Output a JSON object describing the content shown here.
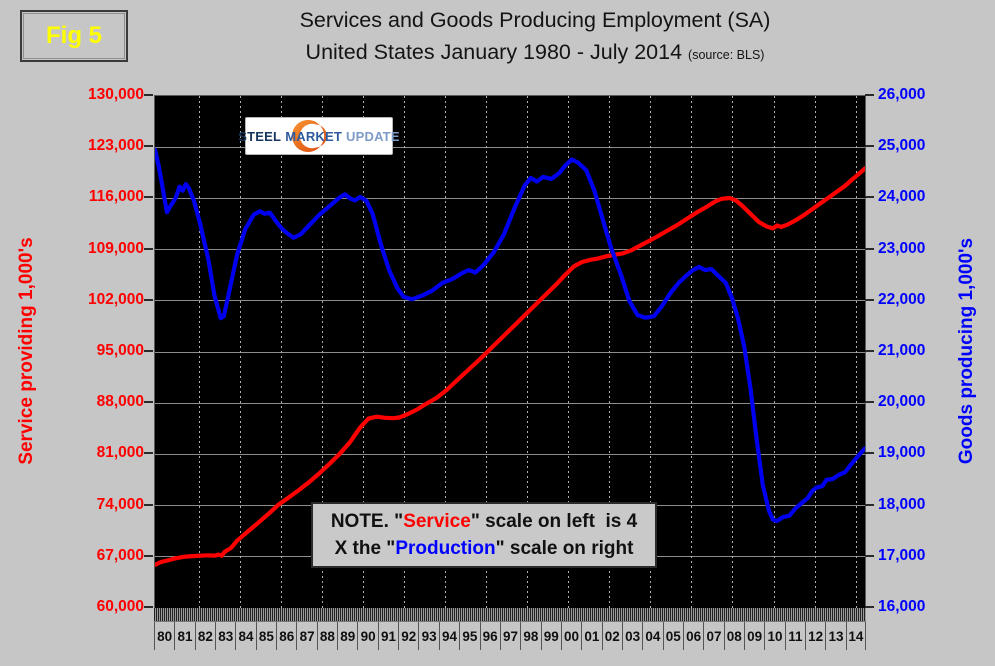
{
  "fig_label": "Fig 5",
  "title": {
    "line1": "Services and Goods Producing Employment (SA)",
    "line2": "United States January 1980 - July 2014",
    "source": "(source: BLS)"
  },
  "logo": {
    "word1": "STEEL",
    "word2": "MARKET",
    "word3": "UPDATE"
  },
  "note": {
    "parts": [
      {
        "text": "NOTE. \"",
        "color": "k"
      },
      {
        "text": "Service",
        "color": "r"
      },
      {
        "text": "\" scale on left  is 4\nX the \"",
        "color": "k"
      },
      {
        "text": "Production",
        "color": "b"
      },
      {
        "text": "\" scale on right",
        "color": "k"
      }
    ]
  },
  "axes": {
    "left_title": "Service providing 1,000's",
    "right_title": "Goods producing 1,000's",
    "left_ticks": [
      "130,000",
      "123,000",
      "116,000",
      "109,000",
      "102,000",
      "95,000",
      "88,000",
      "81,000",
      "74,000",
      "67,000",
      "60,000"
    ],
    "right_ticks": [
      "26,000",
      "25,000",
      "24,000",
      "23,000",
      "22,000",
      "21,000",
      "20,000",
      "19,000",
      "18,000",
      "17,000",
      "16,000"
    ],
    "year_labels": [
      "80",
      "81",
      "82",
      "83",
      "84",
      "85",
      "86",
      "87",
      "88",
      "89",
      "90",
      "91",
      "92",
      "93",
      "94",
      "95",
      "96",
      "97",
      "98",
      "99",
      "00",
      "01",
      "02",
      "03",
      "04",
      "05",
      "06",
      "07",
      "08",
      "09",
      "10",
      "11",
      "12",
      "13",
      "14"
    ]
  },
  "colors": {
    "service_line": "#ff0000",
    "goods_line": "#0000ee",
    "background": "#c6c6c6",
    "plot_bg": "#000000",
    "fig_label_color": "#ffff00"
  },
  "chart_data": {
    "type": "line",
    "title": "Services and Goods Producing Employment (SA), United States January 1980 - July 2014",
    "x_range": [
      1980.0,
      2014.58
    ],
    "ylim_left": [
      60000,
      130000
    ],
    "ylim_right": [
      16000,
      26000
    ],
    "grid": "on",
    "vgrid_years": [
      1982.15,
      1984.15,
      1986.15,
      1988.15,
      1990.15,
      1992.15,
      1994.15,
      1996.15,
      1998.15,
      2000.15,
      2002.15,
      2004.15,
      2006.15,
      2008.15,
      2010.15,
      2012.15,
      2014.15
    ],
    "series": [
      {
        "name": "Service providing 1,000's",
        "axis": "left",
        "color": "#ff0000",
        "points": [
          [
            1980.0,
            65900
          ],
          [
            1980.3,
            66300
          ],
          [
            1980.6,
            66500
          ],
          [
            1981.0,
            66800
          ],
          [
            1981.4,
            67000
          ],
          [
            1981.8,
            67100
          ],
          [
            1982.2,
            67150
          ],
          [
            1982.6,
            67200
          ],
          [
            1982.9,
            67150
          ],
          [
            1983.1,
            67300
          ],
          [
            1983.25,
            67150
          ],
          [
            1983.4,
            67700
          ],
          [
            1983.7,
            68200
          ],
          [
            1984.0,
            69200
          ],
          [
            1984.5,
            70400
          ],
          [
            1985.0,
            71600
          ],
          [
            1985.5,
            72800
          ],
          [
            1986.0,
            74100
          ],
          [
            1986.5,
            75100
          ],
          [
            1987.0,
            76100
          ],
          [
            1987.5,
            77200
          ],
          [
            1988.0,
            78400
          ],
          [
            1988.5,
            79700
          ],
          [
            1989.0,
            81100
          ],
          [
            1989.5,
            82700
          ],
          [
            1990.0,
            84700
          ],
          [
            1990.4,
            85900
          ],
          [
            1990.8,
            86150
          ],
          [
            1991.2,
            86000
          ],
          [
            1991.6,
            85950
          ],
          [
            1991.9,
            86050
          ],
          [
            1992.3,
            86500
          ],
          [
            1992.8,
            87200
          ],
          [
            1993.2,
            87900
          ],
          [
            1993.7,
            88700
          ],
          [
            1994.2,
            89800
          ],
          [
            1994.7,
            91100
          ],
          [
            1995.2,
            92400
          ],
          [
            1995.7,
            93700
          ],
          [
            1996.0,
            94500
          ],
          [
            1996.4,
            95600
          ],
          [
            1996.8,
            96700
          ],
          [
            1997.2,
            97800
          ],
          [
            1997.6,
            98900
          ],
          [
            1998.0,
            100000
          ],
          [
            1998.4,
            101100
          ],
          [
            1998.8,
            102200
          ],
          [
            1999.2,
            103300
          ],
          [
            1999.6,
            104400
          ],
          [
            2000.0,
            105600
          ],
          [
            2000.4,
            106700
          ],
          [
            2000.8,
            107300
          ],
          [
            2001.2,
            107600
          ],
          [
            2001.6,
            107800
          ],
          [
            2002.0,
            108100
          ],
          [
            2002.4,
            108300
          ],
          [
            2002.8,
            108500
          ],
          [
            2003.2,
            108900
          ],
          [
            2003.6,
            109500
          ],
          [
            2004.0,
            110100
          ],
          [
            2004.4,
            110700
          ],
          [
            2004.9,
            111500
          ],
          [
            2005.4,
            112300
          ],
          [
            2005.9,
            113200
          ],
          [
            2006.4,
            114100
          ],
          [
            2006.9,
            114900
          ],
          [
            2007.3,
            115600
          ],
          [
            2007.6,
            115950
          ],
          [
            2008.0,
            116050
          ],
          [
            2008.3,
            115700
          ],
          [
            2008.6,
            115000
          ],
          [
            2009.0,
            113900
          ],
          [
            2009.4,
            112800
          ],
          [
            2009.8,
            112150
          ],
          [
            2010.1,
            111900
          ],
          [
            2010.3,
            112300
          ],
          [
            2010.5,
            112100
          ],
          [
            2010.8,
            112400
          ],
          [
            2011.2,
            113000
          ],
          [
            2011.6,
            113700
          ],
          [
            2012.0,
            114500
          ],
          [
            2012.4,
            115300
          ],
          [
            2012.8,
            116100
          ],
          [
            2013.2,
            116900
          ],
          [
            2013.6,
            117700
          ],
          [
            2014.0,
            118700
          ],
          [
            2014.3,
            119400
          ],
          [
            2014.58,
            120100
          ]
        ]
      },
      {
        "name": "Goods producing 1,000's",
        "axis": "right",
        "color": "#0000ee",
        "points": [
          [
            1980.0,
            24950
          ],
          [
            1980.17,
            24650
          ],
          [
            1980.33,
            24300
          ],
          [
            1980.58,
            23730
          ],
          [
            1980.75,
            23850
          ],
          [
            1981.0,
            24000
          ],
          [
            1981.2,
            24230
          ],
          [
            1981.35,
            24150
          ],
          [
            1981.5,
            24280
          ],
          [
            1981.65,
            24200
          ],
          [
            1981.9,
            23950
          ],
          [
            1982.2,
            23500
          ],
          [
            1982.6,
            22800
          ],
          [
            1982.9,
            22100
          ],
          [
            1983.2,
            21660
          ],
          [
            1983.35,
            21700
          ],
          [
            1983.6,
            22150
          ],
          [
            1984.0,
            22900
          ],
          [
            1984.4,
            23400
          ],
          [
            1984.8,
            23680
          ],
          [
            1985.1,
            23750
          ],
          [
            1985.35,
            23700
          ],
          [
            1985.6,
            23720
          ],
          [
            1985.9,
            23550
          ],
          [
            1986.2,
            23400
          ],
          [
            1986.5,
            23300
          ],
          [
            1986.75,
            23230
          ],
          [
            1987.1,
            23300
          ],
          [
            1987.5,
            23470
          ],
          [
            1988.0,
            23680
          ],
          [
            1988.5,
            23850
          ],
          [
            1989.0,
            24020
          ],
          [
            1989.25,
            24080
          ],
          [
            1989.5,
            24000
          ],
          [
            1989.75,
            23960
          ],
          [
            1990.0,
            24030
          ],
          [
            1990.3,
            23950
          ],
          [
            1990.6,
            23700
          ],
          [
            1991.0,
            23100
          ],
          [
            1991.4,
            22600
          ],
          [
            1991.8,
            22250
          ],
          [
            1992.1,
            22080
          ],
          [
            1992.5,
            22030
          ],
          [
            1993.0,
            22100
          ],
          [
            1993.5,
            22200
          ],
          [
            1994.0,
            22350
          ],
          [
            1994.5,
            22430
          ],
          [
            1995.0,
            22550
          ],
          [
            1995.3,
            22600
          ],
          [
            1995.6,
            22550
          ],
          [
            1996.0,
            22700
          ],
          [
            1996.5,
            22950
          ],
          [
            1997.0,
            23300
          ],
          [
            1997.5,
            23800
          ],
          [
            1998.0,
            24250
          ],
          [
            1998.3,
            24400
          ],
          [
            1998.6,
            24330
          ],
          [
            1998.9,
            24420
          ],
          [
            1999.3,
            24380
          ],
          [
            1999.7,
            24500
          ],
          [
            2000.0,
            24650
          ],
          [
            2000.3,
            24760
          ],
          [
            2000.6,
            24700
          ],
          [
            2001.0,
            24550
          ],
          [
            2001.4,
            24150
          ],
          [
            2001.8,
            23600
          ],
          [
            2002.2,
            23050
          ],
          [
            2002.7,
            22500
          ],
          [
            2003.1,
            22000
          ],
          [
            2003.5,
            21720
          ],
          [
            2003.9,
            21670
          ],
          [
            2004.3,
            21700
          ],
          [
            2004.7,
            21900
          ],
          [
            2005.1,
            22150
          ],
          [
            2005.5,
            22350
          ],
          [
            2005.9,
            22500
          ],
          [
            2006.2,
            22600
          ],
          [
            2006.5,
            22660
          ],
          [
            2006.8,
            22600
          ],
          [
            2007.1,
            22620
          ],
          [
            2007.4,
            22500
          ],
          [
            2007.8,
            22350
          ],
          [
            2008.1,
            22050
          ],
          [
            2008.4,
            21650
          ],
          [
            2008.7,
            21100
          ],
          [
            2009.0,
            20300
          ],
          [
            2009.3,
            19300
          ],
          [
            2009.6,
            18400
          ],
          [
            2009.9,
            17900
          ],
          [
            2010.1,
            17720
          ],
          [
            2010.3,
            17700
          ],
          [
            2010.6,
            17780
          ],
          [
            2010.9,
            17800
          ],
          [
            2011.2,
            17950
          ],
          [
            2011.5,
            18050
          ],
          [
            2011.8,
            18150
          ],
          [
            2012.0,
            18280
          ],
          [
            2012.2,
            18350
          ],
          [
            2012.5,
            18380
          ],
          [
            2012.7,
            18500
          ],
          [
            2013.0,
            18520
          ],
          [
            2013.3,
            18600
          ],
          [
            2013.6,
            18650
          ],
          [
            2013.9,
            18800
          ],
          [
            2014.2,
            18950
          ],
          [
            2014.58,
            19120
          ]
        ]
      }
    ]
  }
}
